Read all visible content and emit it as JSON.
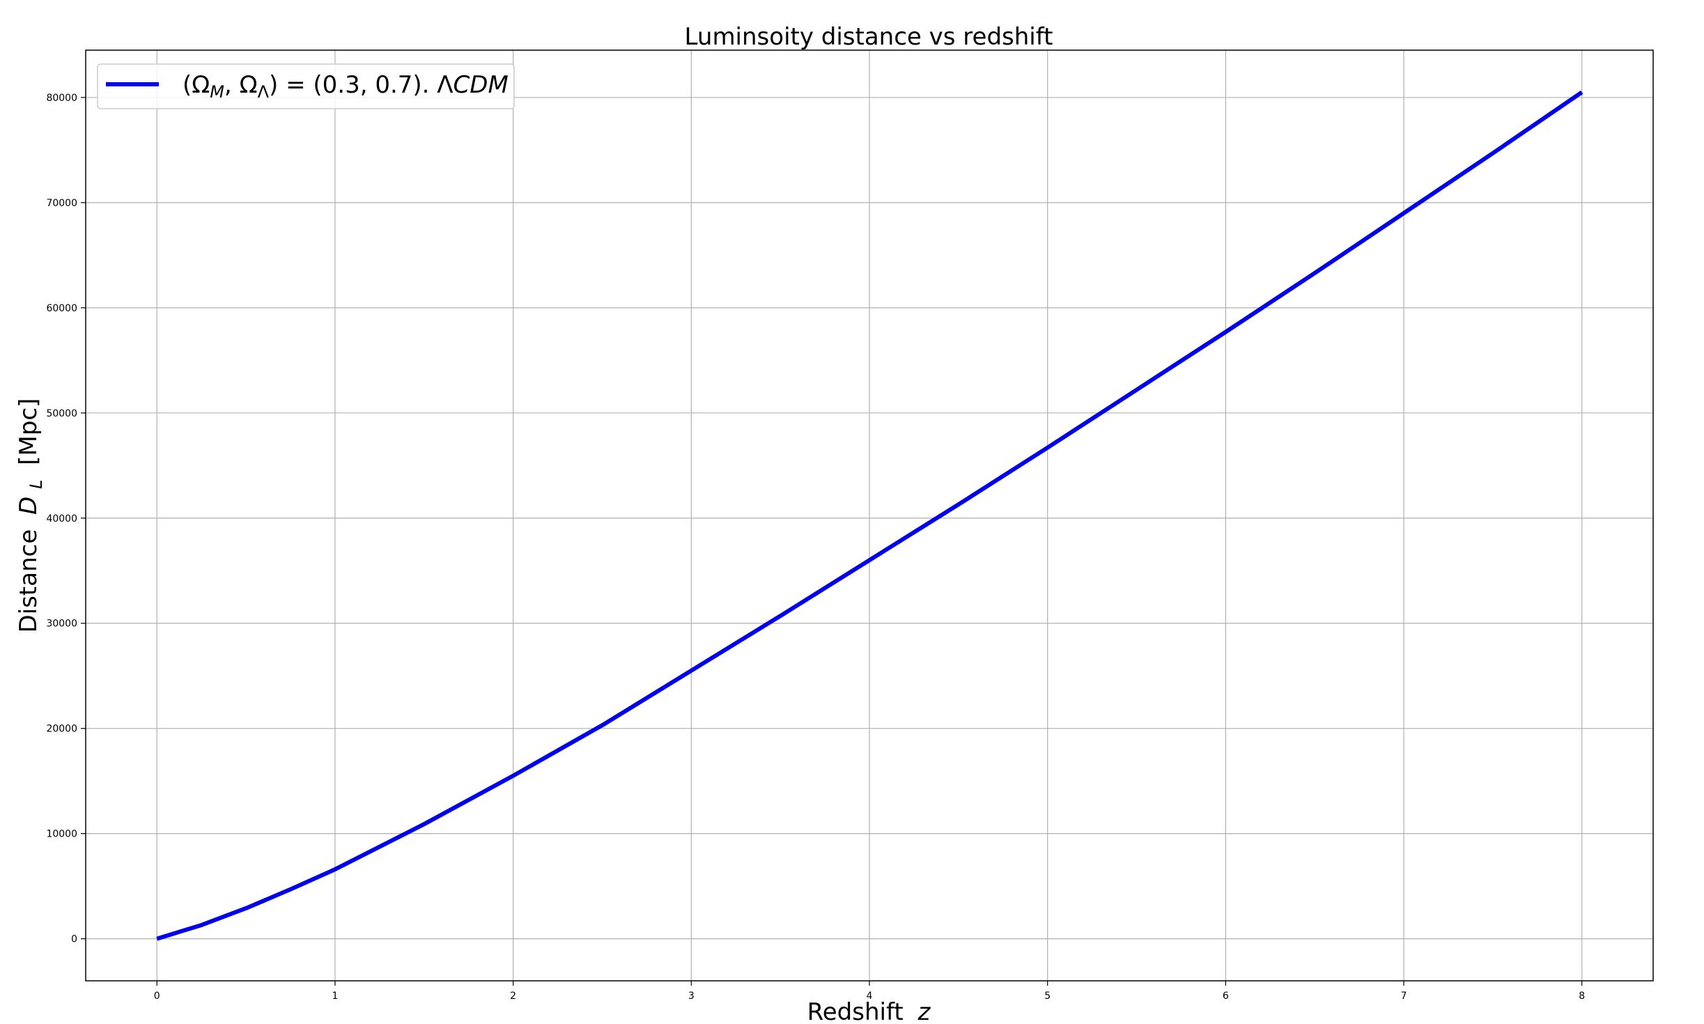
{
  "chart_data": {
    "type": "line",
    "title": "Luminsoity distance vs redshift",
    "xlabel": "Redshift",
    "xlabel_var": "z",
    "ylabel": "Distance",
    "ylabel_var": "D",
    "ylabel_sub": "L",
    "ylabel_unit": "[Mpc]",
    "xlim": [
      -0.4,
      8.4
    ],
    "ylim": [
      -4000,
      84500
    ],
    "xticks": [
      0,
      1,
      2,
      3,
      4,
      5,
      6,
      7,
      8
    ],
    "yticks": [
      0,
      10000,
      20000,
      30000,
      40000,
      50000,
      60000,
      70000,
      80000
    ],
    "grid": true,
    "legend_position": "top-left",
    "series": [
      {
        "name": "(Ω_M, Ω_Λ) = (0.3, 0.7). ΛCDM",
        "color": "#0000ee",
        "x": [
          0,
          0.25,
          0.5,
          0.75,
          1,
          1.5,
          2,
          2.5,
          3,
          3.5,
          4,
          4.5,
          5,
          5.5,
          6,
          6.5,
          7,
          7.5,
          8
        ],
        "y": [
          0,
          1300,
          2900,
          4700,
          6600,
          10900,
          15500,
          20300,
          25500,
          30700,
          36000,
          41300,
          46700,
          52200,
          57700,
          63300,
          69000,
          74700,
          80500
        ]
      }
    ]
  },
  "legend": {
    "prefix": "(Ω",
    "sub1": "M",
    "mid": ", Ω",
    "sub2": "Λ",
    "suffix": ") = (0.3, 0.7). ",
    "lambda": "Λ",
    "cdm": "CDM"
  }
}
